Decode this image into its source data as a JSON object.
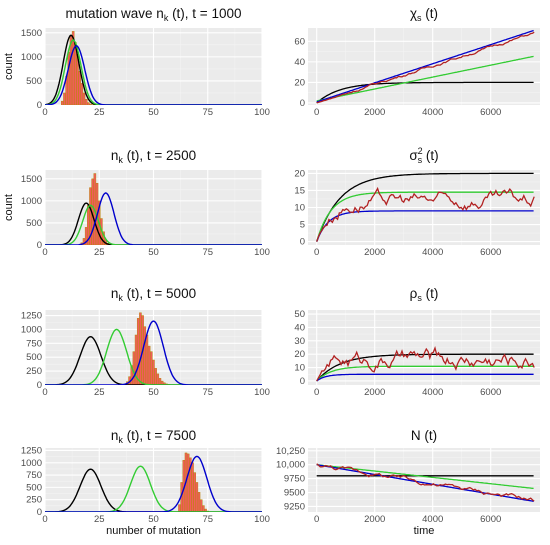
{
  "chart_data": [
    {
      "id": "p1",
      "type": "bar",
      "title_main": "mutation wave n",
      "title_sub": "k",
      "title_rest": " (t), t = 1000",
      "ylabel": "count",
      "xlabel": "",
      "xlim": [
        0,
        100
      ],
      "ylim": [
        0,
        1600
      ],
      "xticks": [
        "0",
        "25",
        "50",
        "75",
        "100"
      ],
      "yticks": [
        "0",
        "500",
        "1000",
        "1500"
      ],
      "hist": {
        "x": [
          8,
          9,
          10,
          11,
          12,
          13,
          14,
          15,
          16,
          17,
          18,
          19,
          20,
          21,
          22
        ],
        "values": [
          80,
          250,
          600,
          1100,
          1450,
          1530,
          1300,
          1050,
          700,
          450,
          250,
          120,
          50,
          20,
          5
        ]
      },
      "curves": [
        {
          "color": "#000000",
          "mu": 12,
          "sigma": 3.6,
          "peak": 1450
        },
        {
          "color": "#33cc33",
          "mu": 13,
          "sigma": 3.6,
          "peak": 1350
        },
        {
          "color": "#0000cc",
          "mu": 14.5,
          "sigma": 3.8,
          "peak": 1230
        }
      ]
    },
    {
      "id": "p2",
      "type": "line",
      "title_main": "χ",
      "title_sub": "s",
      "title_rest": " (t)",
      "ylabel": "",
      "xlabel": "",
      "xlim": [
        -300,
        7700
      ],
      "ylim": [
        -2,
        73
      ],
      "xticks": [
        "0",
        "2000",
        "4000",
        "6000"
      ],
      "yticks": [
        "0",
        "20",
        "40",
        "60"
      ],
      "series": [
        {
          "color": "#000000",
          "kind": "sat",
          "A": 20,
          "tau": 800
        },
        {
          "color": "#33cc33",
          "kind": "lin",
          "slope": 0.0058,
          "off": 2
        },
        {
          "color": "#0000cc",
          "kind": "lin",
          "slope": 0.0093,
          "off": 1
        },
        {
          "color": "#b22222",
          "kind": "lin_noise",
          "slope": 0.0091,
          "off": 0,
          "amp": 1.8
        }
      ]
    },
    {
      "id": "p3",
      "type": "bar",
      "title_main": "n",
      "title_sub": "k",
      "title_rest": " (t), t = 2500",
      "ylabel": "count",
      "xlabel": "",
      "xlim": [
        0,
        100
      ],
      "ylim": [
        0,
        1700
      ],
      "xticks": [
        "0",
        "25",
        "50",
        "75",
        "100"
      ],
      "yticks": [
        "0",
        "500",
        "1000",
        "1500"
      ],
      "hist": {
        "x": [
          17,
          18,
          19,
          20,
          21,
          22,
          23,
          24,
          25,
          26,
          27,
          28,
          29
        ],
        "values": [
          50,
          150,
          400,
          900,
          1300,
          1500,
          1620,
          1400,
          1000,
          600,
          300,
          120,
          40
        ]
      },
      "curves": [
        {
          "color": "#000000",
          "mu": 19,
          "sigma": 3.6,
          "peak": 950
        },
        {
          "color": "#33cc33",
          "mu": 21,
          "sigma": 3.6,
          "peak": 900
        },
        {
          "color": "#0000cc",
          "mu": 28,
          "sigma": 3.8,
          "peak": 1180
        }
      ]
    },
    {
      "id": "p4",
      "type": "line",
      "title_main": "σ",
      "title_sup": "2",
      "title_sub": "s",
      "title_rest": " (t)",
      "ylabel": "",
      "xlabel": "",
      "xlim": [
        -300,
        7700
      ],
      "ylim": [
        -1,
        21
      ],
      "xticks": [
        "0",
        "2000",
        "4000",
        "6000"
      ],
      "yticks": [
        "0",
        "5",
        "10",
        "15",
        "20"
      ],
      "series": [
        {
          "color": "#000000",
          "kind": "sat",
          "A": 20,
          "tau": 800
        },
        {
          "color": "#33cc33",
          "kind": "sat",
          "A": 14.5,
          "tau": 500
        },
        {
          "color": "#0000cc",
          "kind": "sat",
          "A": 9,
          "tau": 400
        },
        {
          "color": "#b22222",
          "kind": "sat_noise",
          "A": 12,
          "tau": 500,
          "amp": 3
        }
      ]
    },
    {
      "id": "p5",
      "type": "bar",
      "title_main": "n",
      "title_sub": "k",
      "title_rest": " (t), t = 5000",
      "ylabel": "",
      "xlabel": "",
      "xlim": [
        0,
        100
      ],
      "ylim": [
        0,
        1350
      ],
      "xticks": [
        "0",
        "25",
        "50",
        "75",
        "100"
      ],
      "yticks": [
        "0",
        "250",
        "500",
        "750",
        "1000",
        "1250"
      ],
      "hist": {
        "x": [
          38,
          39,
          40,
          41,
          42,
          43,
          44,
          45,
          46,
          47,
          48,
          49,
          50,
          51,
          52,
          53,
          54,
          55,
          56,
          57
        ],
        "values": [
          60,
          150,
          350,
          600,
          900,
          1200,
          1300,
          1250,
          1050,
          900,
          700,
          600,
          450,
          300,
          200,
          120,
          70,
          40,
          20,
          10
        ]
      },
      "curves": [
        {
          "color": "#000000",
          "mu": 21,
          "sigma": 4.8,
          "peak": 870
        },
        {
          "color": "#33cc33",
          "mu": 33,
          "sigma": 4.6,
          "peak": 1000
        },
        {
          "color": "#0000cc",
          "mu": 50,
          "sigma": 4.5,
          "peak": 1150
        }
      ]
    },
    {
      "id": "p6",
      "type": "line",
      "title_main": "ρ",
      "title_sub": "s",
      "title_rest": " (t)",
      "ylabel": "",
      "xlabel": "",
      "xlim": [
        -300,
        7700
      ],
      "ylim": [
        -3,
        53
      ],
      "xticks": [
        "0",
        "2000",
        "4000",
        "6000"
      ],
      "yticks": [
        "0",
        "10",
        "20",
        "30",
        "40",
        "50"
      ],
      "series": [
        {
          "color": "#000000",
          "kind": "sat",
          "A": 20,
          "tau": 800
        },
        {
          "color": "#33cc33",
          "kind": "sat",
          "A": 11,
          "tau": 500
        },
        {
          "color": "#0000cc",
          "kind": "sat",
          "A": 5,
          "tau": 300
        },
        {
          "color": "#b22222",
          "kind": "sat_noise",
          "A": 16,
          "tau": 400,
          "amp": 9
        }
      ]
    },
    {
      "id": "p7",
      "type": "bar",
      "title_main": "n",
      "title_sub": "k",
      "title_rest": " (t), t = 7500",
      "ylabel": "",
      "xlabel": "number of mutation",
      "xlim": [
        0,
        100
      ],
      "ylim": [
        0,
        1300
      ],
      "xticks": [
        "0",
        "25",
        "50",
        "75",
        "100"
      ],
      "yticks": [
        "0",
        "250",
        "500",
        "750",
        "1000",
        "1250"
      ],
      "hist": {
        "x": [
          62,
          63,
          64,
          65,
          66,
          67,
          68,
          69,
          70,
          71,
          72,
          73,
          74,
          75
        ],
        "values": [
          150,
          600,
          1050,
          1200,
          1180,
          1100,
          1000,
          800,
          600,
          400,
          250,
          130,
          60,
          20
        ]
      },
      "curves": [
        {
          "color": "#000000",
          "mu": 21,
          "sigma": 4.8,
          "peak": 870
        },
        {
          "color": "#33cc33",
          "mu": 44,
          "sigma": 4.6,
          "peak": 930
        },
        {
          "color": "#0000cc",
          "mu": 70,
          "sigma": 4.6,
          "peak": 1130
        }
      ]
    },
    {
      "id": "p8",
      "type": "line",
      "title_main": "N",
      "title_sub": "",
      "title_rest": " (t)",
      "ylabel": "",
      "xlabel": "time",
      "xlim": [
        -300,
        7700
      ],
      "ylim": [
        9150,
        10300
      ],
      "xticks": [
        "0",
        "2000",
        "4000",
        "6000"
      ],
      "yticks": [
        "9250",
        "9500",
        "9750",
        "10,000",
        "10,250"
      ],
      "series": [
        {
          "color": "#000000",
          "kind": "flat",
          "A": 9800
        },
        {
          "color": "#33cc33",
          "kind": "decl",
          "start": 10000,
          "slope": -0.057
        },
        {
          "color": "#0000cc",
          "kind": "decl",
          "start": 10000,
          "slope": -0.088
        },
        {
          "color": "#b22222",
          "kind": "decl_noise",
          "start": 10000,
          "slope": -0.085,
          "amp": 60
        }
      ]
    }
  ]
}
